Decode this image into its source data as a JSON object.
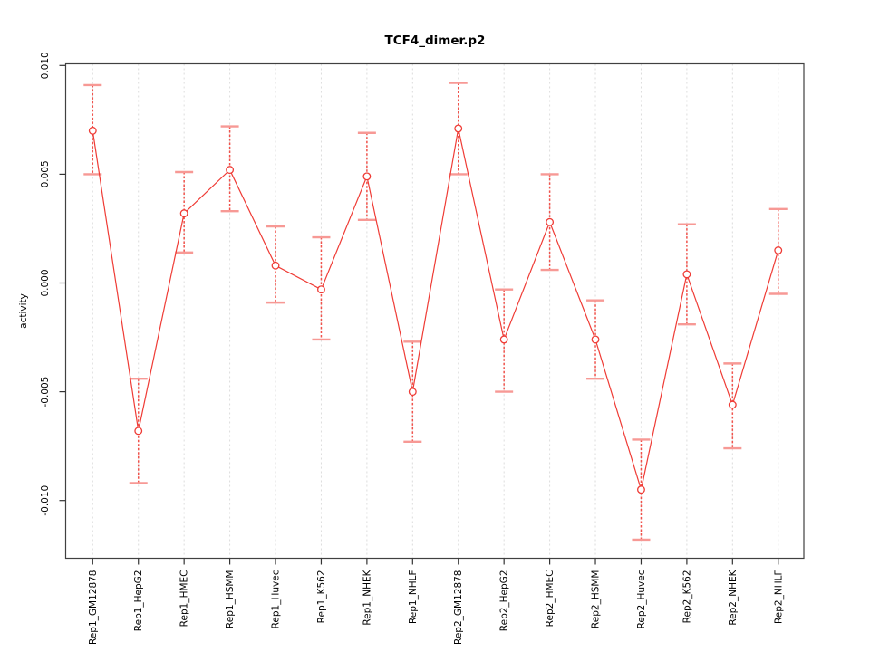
{
  "window": {
    "title": "TCF4_dimer.p2"
  },
  "chart_data": {
    "type": "line",
    "title": "TCF4_dimer.p2",
    "xlabel": "",
    "ylabel": "activity",
    "categories": [
      "Rep1_GM12878",
      "Rep1_HepG2",
      "Rep1_HMEC",
      "Rep1_HSMM",
      "Rep1_Huvec",
      "Rep1_K562",
      "Rep1_NHEK",
      "Rep1_NHLF",
      "Rep2_GM12878",
      "Rep2_HepG2",
      "Rep2_HMEC",
      "Rep2_HSMM",
      "Rep2_Huvec",
      "Rep2_K562",
      "Rep2_NHEK",
      "Rep2_NHLF"
    ],
    "series": [
      {
        "name": "activity",
        "values": [
          0.007,
          -0.0068,
          0.0032,
          0.0052,
          0.0008,
          -0.0003,
          0.0049,
          -0.005,
          0.0071,
          -0.0026,
          0.0028,
          -0.0026,
          -0.0095,
          0.0004,
          -0.0056,
          0.0015
        ],
        "error_low": [
          0.005,
          -0.0092,
          0.0014,
          0.0033,
          -0.0009,
          -0.0026,
          0.0029,
          -0.0073,
          0.005,
          -0.005,
          0.0006,
          -0.0044,
          -0.0118,
          -0.0019,
          -0.0076,
          -0.0005
        ],
        "error_high": [
          0.0091,
          -0.0044,
          0.0051,
          0.0072,
          0.0026,
          0.0021,
          0.0069,
          -0.0027,
          0.0092,
          -0.0003,
          0.005,
          -0.0008,
          -0.0072,
          0.0027,
          -0.0037,
          0.0034
        ]
      }
    ],
    "ylim": [
      -0.0126,
      0.0101
    ],
    "yticks": [
      0.01,
      0.005,
      0.0,
      -0.005,
      -0.01
    ],
    "ytick_labels": [
      "0.010",
      "0.005",
      "0.000",
      "-0.005",
      "-0.010"
    ],
    "grid": "vertical dashed line at each category; dotted horizontal line at y=0",
    "legend": "none",
    "marker": "open-circle",
    "colors": {
      "line": "#ef3b35",
      "error_stem": "#f0524b",
      "error_cap": "#f79995",
      "grid": "#dcdcdc",
      "frame": "#404040",
      "tick": "#333333",
      "text": "#000000",
      "background": "#ffffff"
    }
  }
}
